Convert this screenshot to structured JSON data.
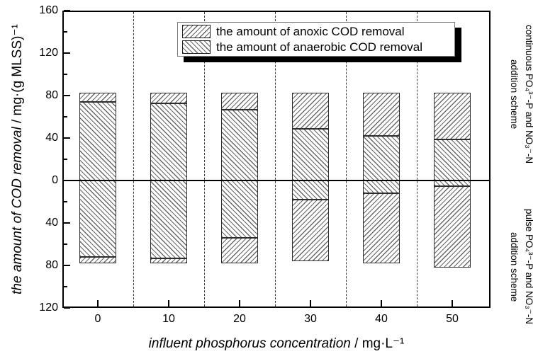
{
  "figure": {
    "background": "#ffffff",
    "axis_color": "#000000",
    "hatch_color": "#676767",
    "bar_border_color": "#2d2d2d"
  },
  "chart_data": {
    "type": "bar",
    "subtype": "diverging-stacked-hatched",
    "title": "",
    "xlabel": "influent phosphorus concentration",
    "xlabel_unit": " / mg·L⁻¹",
    "ylabel": "the amount of COD removal",
    "ylabel_unit": " / mg·(g MLSS)⁻¹",
    "categories": [
      "0",
      "10",
      "20",
      "30",
      "40",
      "50"
    ],
    "category_values": [
      0,
      10,
      20,
      30,
      40,
      50
    ],
    "x_separators": [
      5,
      15,
      25,
      35,
      45
    ],
    "y_axis": {
      "upper_ticks": [
        160,
        120,
        80,
        40,
        0
      ],
      "lower_ticks": [
        40,
        80,
        120
      ],
      "upper_minor_ticks": [
        140,
        100,
        60,
        20
      ],
      "lower_minor_ticks": [
        20,
        60,
        100
      ],
      "ylim_upper": 160,
      "ylim_lower": 120,
      "grid": false
    },
    "upper_section": {
      "scheme": "continuous",
      "series": [
        {
          "name": "anaerobic COD removal",
          "hatch": "backward-diagonal",
          "values": [
            74,
            73,
            67,
            49,
            42,
            39
          ]
        },
        {
          "name": "anoxic COD removal",
          "hatch": "forward-diagonal",
          "values": [
            9,
            10,
            16,
            34,
            41,
            44
          ]
        }
      ]
    },
    "lower_section": {
      "scheme": "pulse",
      "series": [
        {
          "name": "anaerobic COD removal",
          "hatch": "backward-diagonal",
          "values": [
            72,
            73,
            54,
            18,
            12,
            5
          ]
        },
        {
          "name": "anoxic COD removal",
          "hatch": "forward-diagonal",
          "values": [
            6,
            5,
            24,
            58,
            66,
            77
          ]
        }
      ]
    },
    "legend": {
      "position": "top-center",
      "items": [
        {
          "label": "the amount of anoxic COD removal",
          "hatch": "forward-diagonal"
        },
        {
          "label": "the amount of anaerobic COD removal",
          "hatch": "backward-diagonal"
        }
      ]
    },
    "right_labels": [
      {
        "line1": "continuous PO₄³⁻-P and NO₃⁻-N",
        "line2": "addition scheme"
      },
      {
        "line1": "pulse PO₄³⁻-P and NO₃⁻-N",
        "line2": "addition scheme"
      }
    ]
  }
}
